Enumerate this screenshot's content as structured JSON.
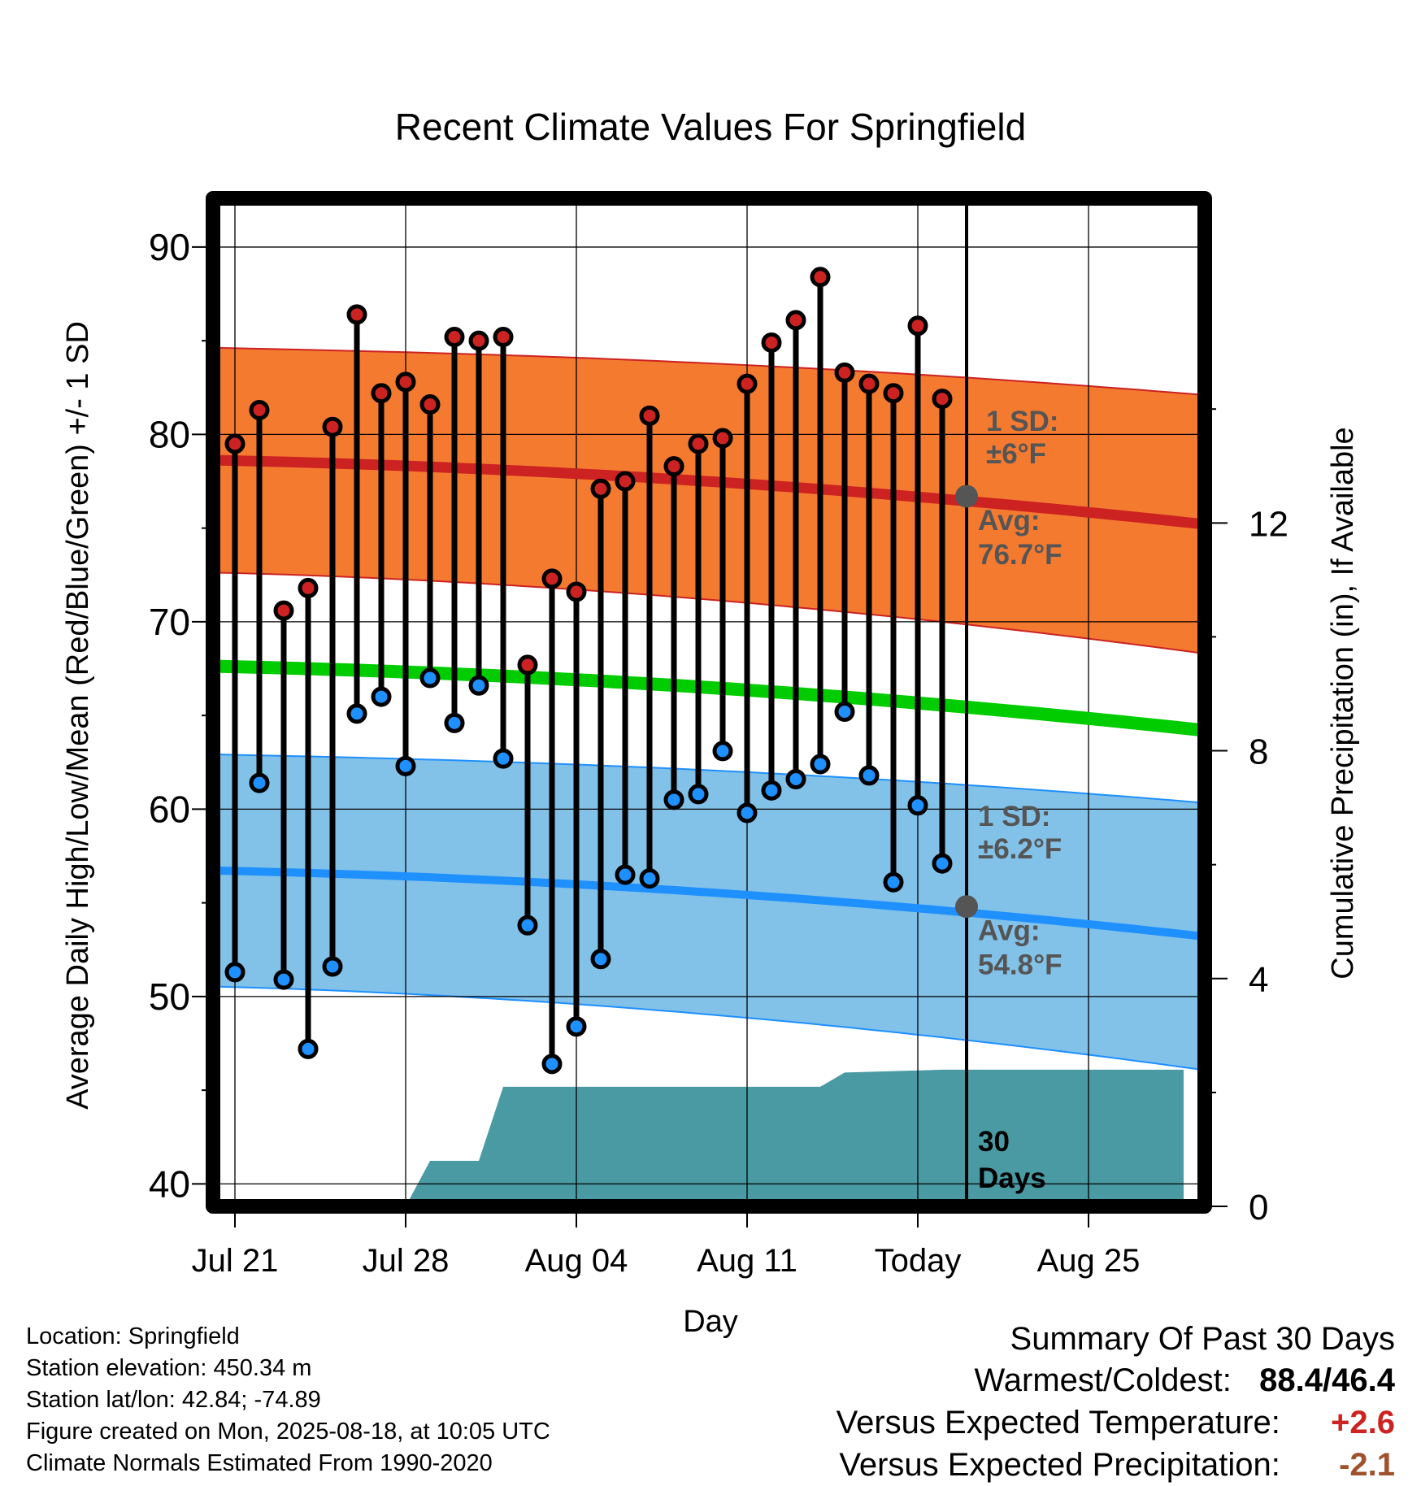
{
  "chart_data": {
    "type": "line",
    "title": "Recent Climate Values For Springfield",
    "xlabel": "Day",
    "ylabel": "Average Daily High/Low/Mean (Red/Blue/Green) +/- 1 SD",
    "y2label": "Cumulative Precipitation (in), If Available",
    "ylim": [
      38.8,
      92.6
    ],
    "y_ticks": [
      40,
      50,
      60,
      70,
      80,
      90
    ],
    "y2lim": [
      0,
      17.7
    ],
    "y2_ticks": [
      0,
      4,
      8,
      12
    ],
    "x_tick_labels": [
      "Jul 21",
      "Jul 28",
      "Aug 04",
      "Aug 11",
      "Today",
      "Aug 25"
    ],
    "today_label": "Today",
    "grid": true,
    "daily_high": [
      79.5,
      81.3,
      70.6,
      71.8,
      80.4,
      86.4,
      82.2,
      82.8,
      81.6,
      85.2,
      85.0,
      85.2,
      67.7,
      72.3,
      71.6,
      77.1,
      77.5,
      81.0,
      78.3,
      79.5,
      79.8,
      82.7,
      84.9,
      86.1,
      88.4,
      83.3,
      82.7,
      82.2,
      85.8,
      81.9
    ],
    "daily_low": [
      51.3,
      61.4,
      50.9,
      47.2,
      51.6,
      65.1,
      66.0,
      62.3,
      67.0,
      64.6,
      66.6,
      62.7,
      53.8,
      46.4,
      48.4,
      52.0,
      56.5,
      56.3,
      60.5,
      60.8,
      63.1,
      59.8,
      61.0,
      61.6,
      62.4,
      65.2,
      61.8,
      56.1,
      60.2,
      57.1
    ],
    "normal_high_start": 78.6,
    "normal_high_end": 75.2,
    "normal_high_sd": 6,
    "normal_low_start": 56.7,
    "normal_low_end": 53.2,
    "normal_low_sd": 6.2,
    "normal_mean_start": 67.6,
    "normal_mean_end": 64.2,
    "precip_cumulative": [
      {
        "day": 7,
        "in": 0
      },
      {
        "day": 8,
        "in": 0.8
      },
      {
        "day": 10,
        "in": 0.8
      },
      {
        "day": 11,
        "in": 2.1
      },
      {
        "day": 24,
        "in": 2.1
      },
      {
        "day": 25,
        "in": 2.35
      },
      {
        "day": 29,
        "in": 2.4
      },
      {
        "day": 38.9,
        "in": 2.4
      }
    ],
    "hi_sd_label": [
      "1 SD:",
      "±6°F"
    ],
    "hi_avg_label": [
      "Avg:",
      "76.7°F"
    ],
    "lo_sd_label": [
      "1 SD:",
      "±6.2°F"
    ],
    "lo_avg_label": [
      "Avg:",
      "54.8°F"
    ],
    "precip_days_label": [
      "30",
      "Days"
    ],
    "today_high_avg": 76.7,
    "today_low_avg": 54.8,
    "colors": {
      "high": "#cc2222",
      "high_band": "#f47a30",
      "low": "#1e90ff",
      "low_band": "#82c1e8",
      "mean": "#00cc00",
      "precip": "#4a9aa4",
      "avg_dot": "#555555",
      "label_gray": "#555555"
    }
  },
  "footer": {
    "location": "Location: Springfield",
    "elevation": "Station elevation: 450.34 m",
    "latlon": "Station lat/lon: 42.84; -74.89",
    "created": "Figure created on Mon, 2025-08-18, at 10:05 UTC",
    "normals": "Climate Normals Estimated From 1990-2020"
  },
  "summary": {
    "title": "Summary Of Past 30 Days",
    "warm_cold_label": "Warmest/Coldest:",
    "warm_cold_value": "88.4/46.4",
    "temp_label": "Versus Expected Temperature:",
    "temp_value": "+2.6",
    "temp_color": "#cc2222",
    "precip_label": "Versus Expected Precipitation:",
    "precip_value": "-2.1",
    "precip_color": "#a0522d"
  }
}
